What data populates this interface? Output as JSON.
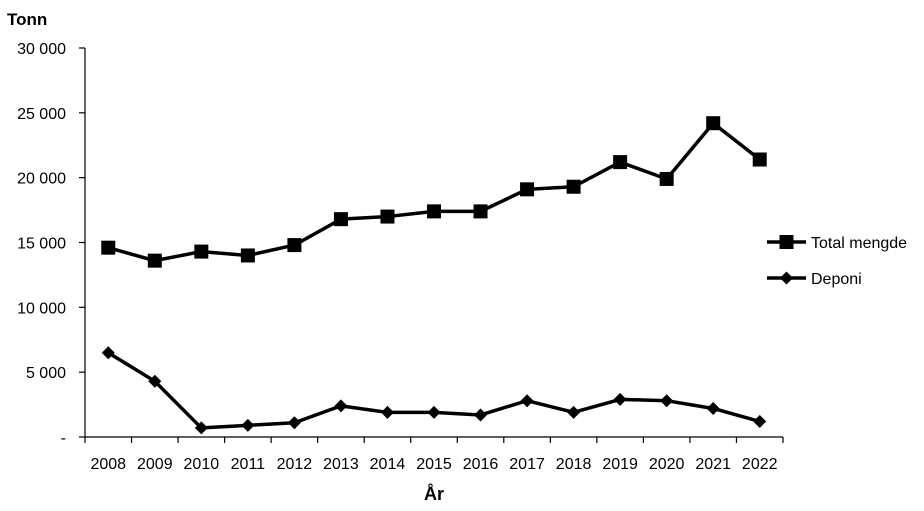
{
  "chart_data": {
    "type": "line",
    "title": "",
    "ylabel": "Tonn",
    "xlabel": "År",
    "categories": [
      "2008",
      "2009",
      "2010",
      "2011",
      "2012",
      "2013",
      "2014",
      "2015",
      "2016",
      "2017",
      "2018",
      "2019",
      "2020",
      "2021",
      "2022"
    ],
    "ylim": [
      0,
      30000
    ],
    "yticks": [
      0,
      5000,
      10000,
      15000,
      20000,
      25000,
      30000
    ],
    "ytick_labels": [
      "-",
      "5 000",
      "10 000",
      "15 000",
      "20 000",
      "25 000",
      "30 000"
    ],
    "grid": false,
    "legend_position": "right",
    "series": [
      {
        "name": "Total mengde",
        "marker": "square",
        "color": "#000000",
        "values": [
          14600,
          13600,
          14300,
          14000,
          14800,
          16800,
          17000,
          17400,
          17400,
          19100,
          19300,
          21200,
          19900,
          24200,
          21400
        ]
      },
      {
        "name": "Deponi",
        "marker": "diamond",
        "color": "#000000",
        "values": [
          6500,
          4300,
          700,
          900,
          1100,
          2400,
          1900,
          1900,
          1700,
          2800,
          1900,
          2900,
          2800,
          2200,
          1200
        ]
      }
    ]
  }
}
